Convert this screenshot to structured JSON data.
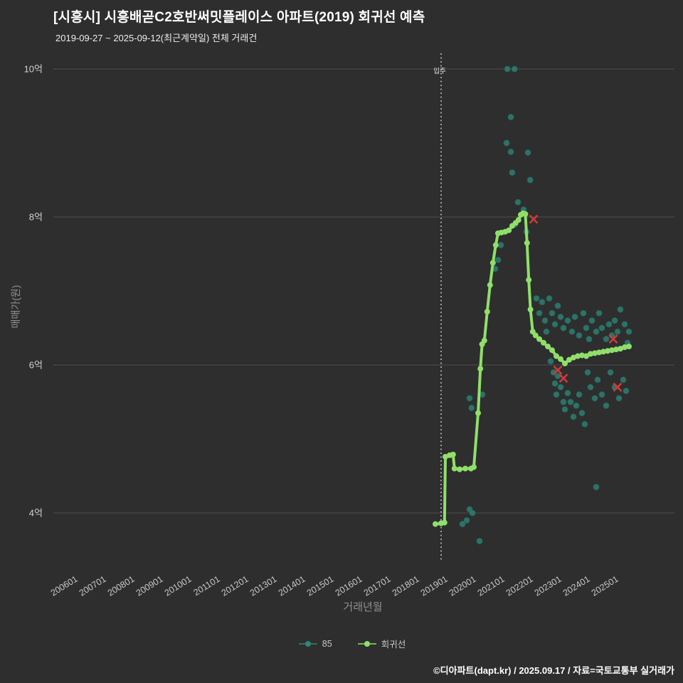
{
  "title": "[시흥시] 시흥배곧C2호반써밋플레이스 아파트(2019) 회귀선 예측",
  "subtitle": "2019-09-27 ~ 2025-09-12(최근계약일) 전체 거래건",
  "footer": "©디아파트(dapt.kr) / 2025.09.17 / 자료=국토교통부 실거래가",
  "background": "#2e2e2e",
  "chart_data": {
    "type": "scatter",
    "title": "[시흥시] 시흥배곧C2호반써밋플레이스 아파트(2019) 회귀선 예측",
    "xlabel": "거래년월",
    "ylabel": "매매가(원)",
    "grid": true,
    "legend_position": "bottom-center",
    "x_ticks": [
      "200601",
      "200701",
      "200801",
      "200901",
      "201001",
      "201101",
      "201201",
      "201301",
      "201401",
      "201501",
      "201601",
      "201701",
      "201801",
      "201901",
      "202001",
      "202101",
      "202201",
      "202301",
      "202401",
      "202501"
    ],
    "y_ticks": [
      {
        "value": 4,
        "label": "4억"
      },
      {
        "value": 6,
        "label": "6억"
      },
      {
        "value": 8,
        "label": "8억"
      },
      {
        "value": 10,
        "label": "10억"
      }
    ],
    "xlim": [
      2005.4,
      2026.2
    ],
    "ylim": [
      3.3,
      10.3
    ],
    "vline": {
      "x": 2019.0,
      "label": "입주",
      "style": "dotted",
      "color": "#ececec"
    },
    "series": [
      {
        "name": "85",
        "type": "scatter",
        "color": "#2f8577",
        "points": [
          [
            2019.75,
            3.85
          ],
          [
            2019.9,
            3.9
          ],
          [
            2020.0,
            4.05
          ],
          [
            2020.1,
            4.0
          ],
          [
            2020.35,
            3.62
          ],
          [
            2020.0,
            5.55
          ],
          [
            2020.07,
            5.42
          ],
          [
            2020.45,
            5.6
          ],
          [
            2020.9,
            7.3
          ],
          [
            2021.0,
            7.42
          ],
          [
            2021.1,
            7.62
          ],
          [
            2021.33,
            10.0
          ],
          [
            2021.58,
            10.0
          ],
          [
            2021.45,
            9.35
          ],
          [
            2021.3,
            9.0
          ],
          [
            2021.45,
            8.88
          ],
          [
            2022.05,
            8.87
          ],
          [
            2021.5,
            8.6
          ],
          [
            2022.13,
            8.5
          ],
          [
            2021.7,
            8.2
          ],
          [
            2021.9,
            8.1
          ],
          [
            2021.6,
            7.9
          ],
          [
            2022.0,
            7.8
          ],
          [
            2022.35,
            6.9
          ],
          [
            2022.45,
            6.7
          ],
          [
            2022.55,
            6.85
          ],
          [
            2022.65,
            6.6
          ],
          [
            2022.7,
            6.45
          ],
          [
            2022.8,
            6.9
          ],
          [
            2022.9,
            6.7
          ],
          [
            2023.0,
            6.55
          ],
          [
            2023.1,
            6.8
          ],
          [
            2023.2,
            6.65
          ],
          [
            2023.3,
            6.5
          ],
          [
            2023.45,
            6.6
          ],
          [
            2023.6,
            6.45
          ],
          [
            2023.7,
            6.65
          ],
          [
            2023.85,
            6.4
          ],
          [
            2024.0,
            6.7
          ],
          [
            2024.1,
            6.5
          ],
          [
            2024.2,
            6.35
          ],
          [
            2024.3,
            6.6
          ],
          [
            2024.45,
            6.45
          ],
          [
            2024.55,
            6.7
          ],
          [
            2024.65,
            6.5
          ],
          [
            2024.8,
            6.35
          ],
          [
            2024.9,
            6.55
          ],
          [
            2025.0,
            6.4
          ],
          [
            2025.1,
            6.6
          ],
          [
            2025.2,
            6.45
          ],
          [
            2025.3,
            6.75
          ],
          [
            2025.45,
            6.55
          ],
          [
            2025.55,
            6.3
          ],
          [
            2025.6,
            6.45
          ],
          [
            2022.85,
            6.05
          ],
          [
            2022.95,
            5.9
          ],
          [
            2023.0,
            5.75
          ],
          [
            2023.05,
            5.6
          ],
          [
            2023.1,
            5.85
          ],
          [
            2023.2,
            5.7
          ],
          [
            2023.3,
            5.5
          ],
          [
            2023.35,
            5.4
          ],
          [
            2023.45,
            5.62
          ],
          [
            2023.55,
            5.5
          ],
          [
            2023.65,
            5.3
          ],
          [
            2023.75,
            5.45
          ],
          [
            2023.85,
            5.6
          ],
          [
            2023.95,
            5.35
          ],
          [
            2024.05,
            5.2
          ],
          [
            2024.15,
            5.9
          ],
          [
            2024.25,
            5.7
          ],
          [
            2024.4,
            5.55
          ],
          [
            2024.5,
            5.8
          ],
          [
            2024.65,
            5.6
          ],
          [
            2024.8,
            5.45
          ],
          [
            2024.95,
            5.9
          ],
          [
            2025.1,
            5.7
          ],
          [
            2025.25,
            5.55
          ],
          [
            2025.4,
            5.8
          ],
          [
            2025.5,
            5.65
          ],
          [
            2024.45,
            4.35
          ]
        ]
      },
      {
        "name": "회귀선",
        "type": "line",
        "color": "#8fdf6a",
        "points": [
          [
            2018.8,
            3.85
          ],
          [
            2019.0,
            3.86
          ],
          [
            2019.12,
            3.87
          ],
          [
            2019.15,
            4.76
          ],
          [
            2019.3,
            4.78
          ],
          [
            2019.42,
            4.79
          ],
          [
            2019.47,
            4.6
          ],
          [
            2019.65,
            4.59
          ],
          [
            2019.85,
            4.6
          ],
          [
            2020.05,
            4.6
          ],
          [
            2020.15,
            4.62
          ],
          [
            2020.3,
            5.35
          ],
          [
            2020.38,
            5.95
          ],
          [
            2020.44,
            6.28
          ],
          [
            2020.52,
            6.33
          ],
          [
            2020.62,
            6.72
          ],
          [
            2020.72,
            7.08
          ],
          [
            2020.82,
            7.38
          ],
          [
            2020.92,
            7.62
          ],
          [
            2021.0,
            7.78
          ],
          [
            2021.12,
            7.79
          ],
          [
            2021.25,
            7.8
          ],
          [
            2021.38,
            7.82
          ],
          [
            2021.5,
            7.88
          ],
          [
            2021.62,
            7.92
          ],
          [
            2021.72,
            7.96
          ],
          [
            2021.8,
            8.03
          ],
          [
            2021.88,
            8.05
          ],
          [
            2021.96,
            8.04
          ],
          [
            2022.02,
            7.65
          ],
          [
            2022.08,
            7.15
          ],
          [
            2022.14,
            6.75
          ],
          [
            2022.22,
            6.45
          ],
          [
            2022.32,
            6.4
          ],
          [
            2022.45,
            6.35
          ],
          [
            2022.6,
            6.3
          ],
          [
            2022.75,
            6.25
          ],
          [
            2022.9,
            6.2
          ],
          [
            2023.05,
            6.12
          ],
          [
            2023.2,
            6.08
          ],
          [
            2023.35,
            6.02
          ],
          [
            2023.5,
            6.07
          ],
          [
            2023.65,
            6.1
          ],
          [
            2023.8,
            6.12
          ],
          [
            2023.95,
            6.13
          ],
          [
            2024.1,
            6.12
          ],
          [
            2024.25,
            6.15
          ],
          [
            2024.4,
            6.16
          ],
          [
            2024.55,
            6.17
          ],
          [
            2024.7,
            6.18
          ],
          [
            2024.85,
            6.19
          ],
          [
            2025.0,
            6.2
          ],
          [
            2025.15,
            6.21
          ],
          [
            2025.3,
            6.22
          ],
          [
            2025.45,
            6.24
          ],
          [
            2025.6,
            6.25
          ]
        ]
      },
      {
        "name": "outliers",
        "type": "x-marker",
        "color": "#cc3b3b",
        "points": [
          [
            2022.25,
            7.97
          ],
          [
            2023.1,
            5.93
          ],
          [
            2023.3,
            5.82
          ],
          [
            2025.05,
            6.35
          ],
          [
            2025.2,
            5.7
          ]
        ]
      }
    ],
    "legend": [
      {
        "label": "85",
        "color": "#2f8577"
      },
      {
        "label": "회귀선",
        "color": "#8fdf6a"
      }
    ]
  }
}
